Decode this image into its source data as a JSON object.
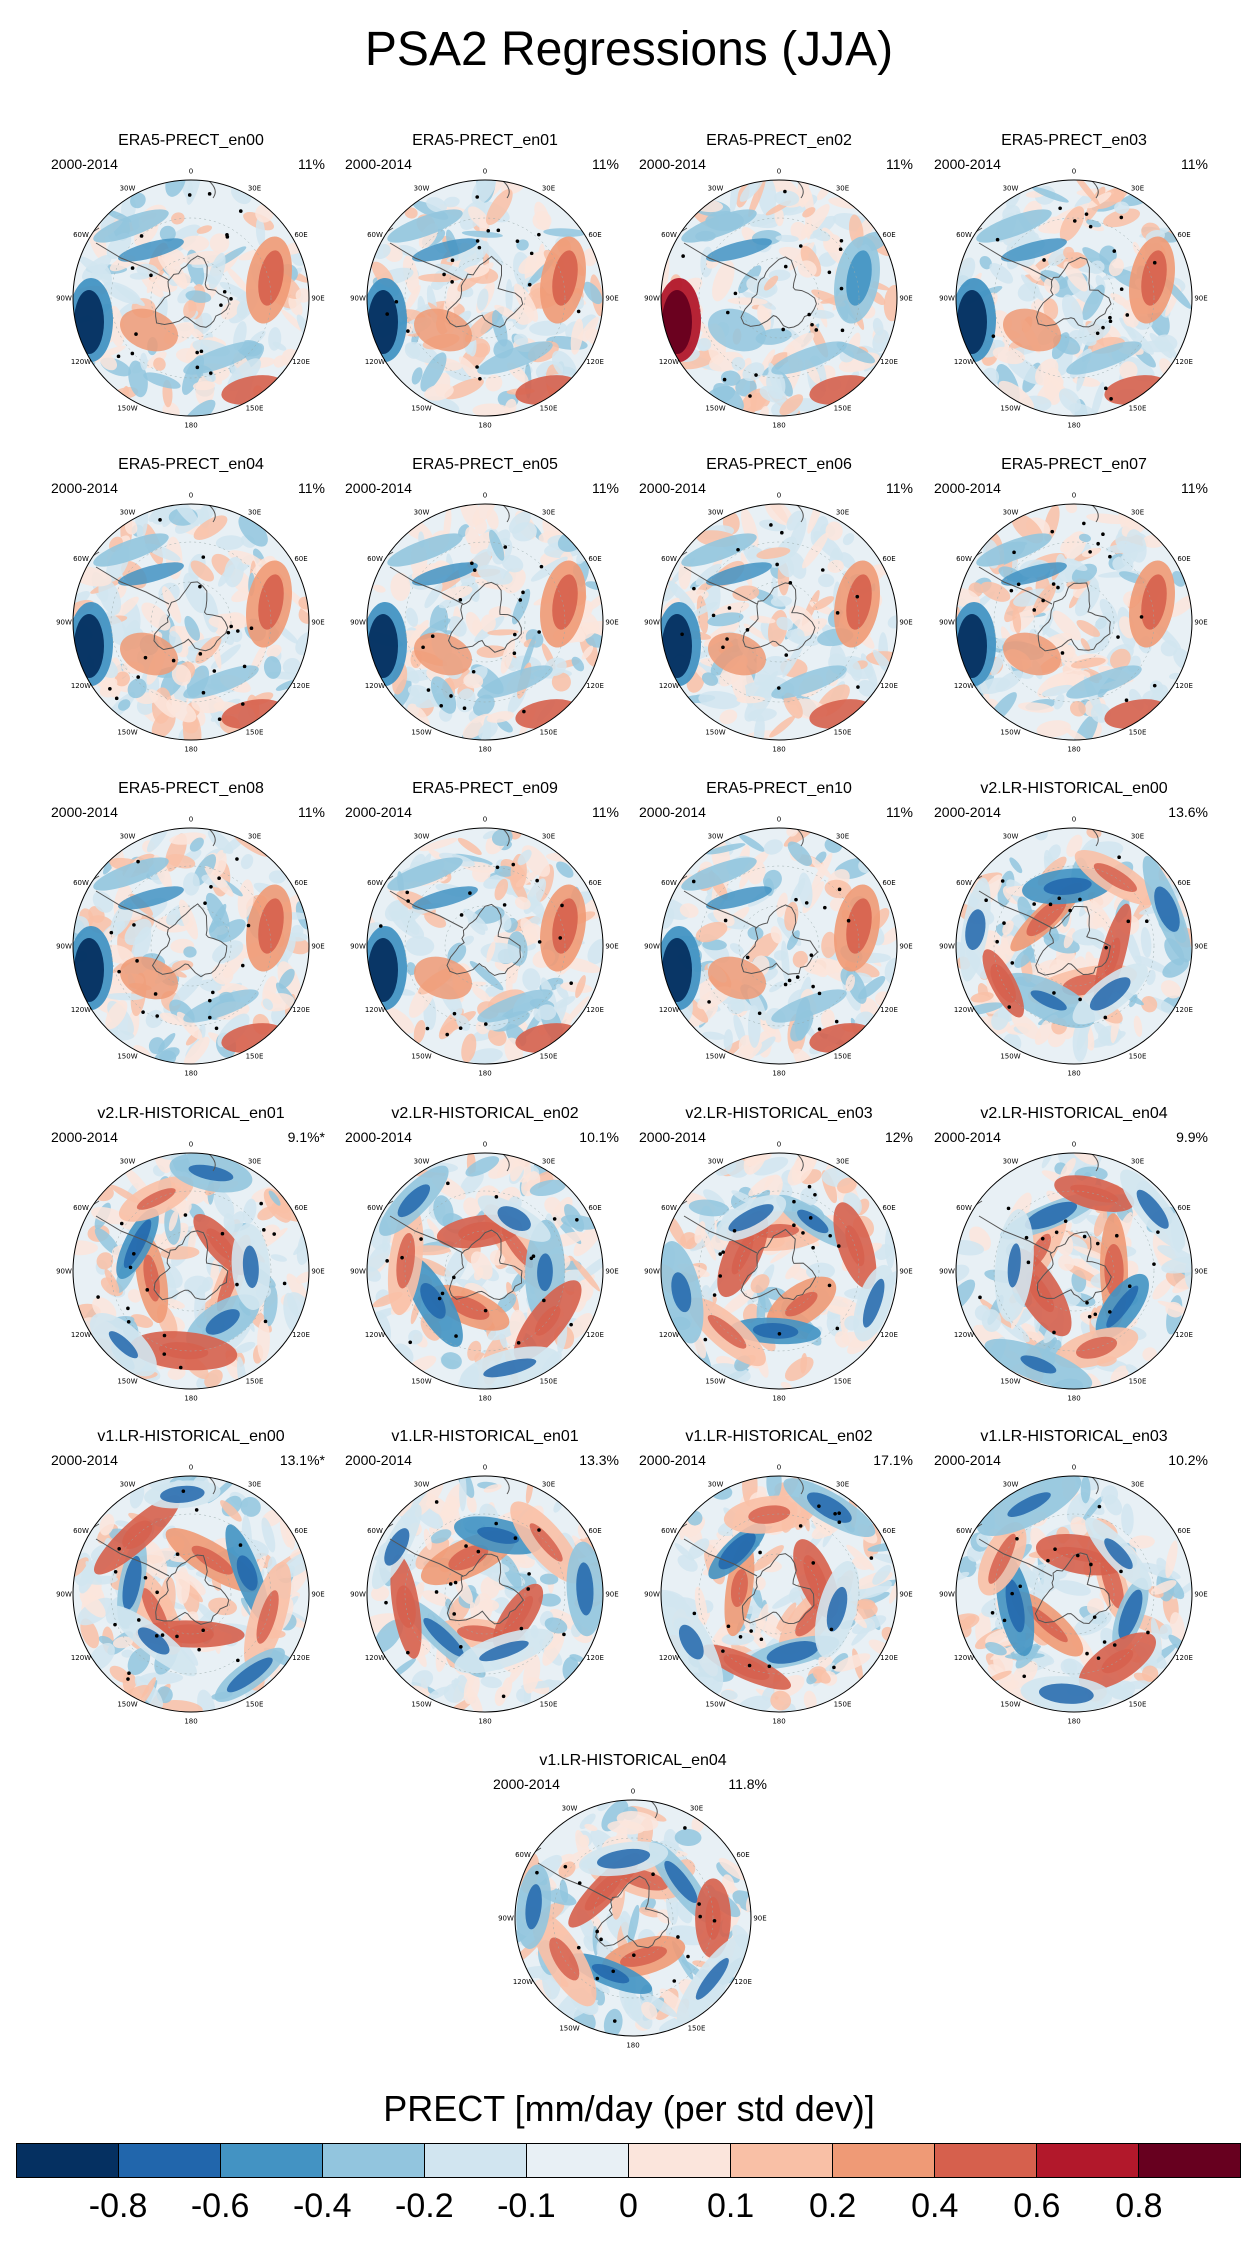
{
  "title": "PSA2 Regressions (JJA)",
  "panels": [
    {
      "name": "ERA5-PRECT_en00",
      "period": "2000-2014",
      "pct": "11%",
      "scheme": "era5"
    },
    {
      "name": "ERA5-PRECT_en01",
      "period": "2000-2014",
      "pct": "11%",
      "scheme": "era5"
    },
    {
      "name": "ERA5-PRECT_en02",
      "period": "2000-2014",
      "pct": "11%",
      "scheme": "era5b"
    },
    {
      "name": "ERA5-PRECT_en03",
      "period": "2000-2014",
      "pct": "11%",
      "scheme": "era5"
    },
    {
      "name": "ERA5-PRECT_en04",
      "period": "2000-2014",
      "pct": "11%",
      "scheme": "era5"
    },
    {
      "name": "ERA5-PRECT_en05",
      "period": "2000-2014",
      "pct": "11%",
      "scheme": "era5"
    },
    {
      "name": "ERA5-PRECT_en06",
      "period": "2000-2014",
      "pct": "11%",
      "scheme": "era5"
    },
    {
      "name": "ERA5-PRECT_en07",
      "period": "2000-2014",
      "pct": "11%",
      "scheme": "era5"
    },
    {
      "name": "ERA5-PRECT_en08",
      "period": "2000-2014",
      "pct": "11%",
      "scheme": "era5"
    },
    {
      "name": "ERA5-PRECT_en09",
      "period": "2000-2014",
      "pct": "11%",
      "scheme": "era5"
    },
    {
      "name": "ERA5-PRECT_en10",
      "period": "2000-2014",
      "pct": "11%",
      "scheme": "era5"
    },
    {
      "name": "v2.LR-HISTORICAL_en00",
      "period": "2000-2014",
      "pct": "13.6%",
      "scheme": "model"
    },
    {
      "name": "v2.LR-HISTORICAL_en01",
      "period": "2000-2014",
      "pct": "9.1%*",
      "scheme": "model"
    },
    {
      "name": "v2.LR-HISTORICAL_en02",
      "period": "2000-2014",
      "pct": "10.1%",
      "scheme": "model"
    },
    {
      "name": "v2.LR-HISTORICAL_en03",
      "period": "2000-2014",
      "pct": "12%",
      "scheme": "model"
    },
    {
      "name": "v2.LR-HISTORICAL_en04",
      "period": "2000-2014",
      "pct": "9.9%",
      "scheme": "model"
    },
    {
      "name": "v1.LR-HISTORICAL_en00",
      "period": "2000-2014",
      "pct": "13.1%*",
      "scheme": "model"
    },
    {
      "name": "v1.LR-HISTORICAL_en01",
      "period": "2000-2014",
      "pct": "13.3%",
      "scheme": "model"
    },
    {
      "name": "v1.LR-HISTORICAL_en02",
      "period": "2000-2014",
      "pct": "17.1%",
      "scheme": "model"
    },
    {
      "name": "v1.LR-HISTORICAL_en03",
      "period": "2000-2014",
      "pct": "10.2%",
      "scheme": "model"
    },
    {
      "name": "v1.LR-HISTORICAL_en04",
      "period": "2000-2014",
      "pct": "11.8%",
      "scheme": "model"
    }
  ],
  "longitude_labels": [
    "0",
    "30E",
    "60E",
    "90E",
    "120E",
    "150E",
    "180",
    "150W",
    "120W",
    "90W",
    "60W",
    "30W"
  ],
  "legend": {
    "title": "PRECT [mm/day (per std dev)]",
    "tick_labels": [
      "-0.8",
      "-0.6",
      "-0.4",
      "-0.2",
      "-0.1",
      "0",
      "0.1",
      "0.2",
      "0.4",
      "0.6",
      "0.8"
    ],
    "colors": [
      "#053061",
      "#2166ac",
      "#4393c3",
      "#92c5de",
      "#d1e5f0",
      "#e8f0f5",
      "#fbe5dc",
      "#f9c0a6",
      "#ef9a76",
      "#d6604d",
      "#b2182b",
      "#67001f"
    ]
  }
}
